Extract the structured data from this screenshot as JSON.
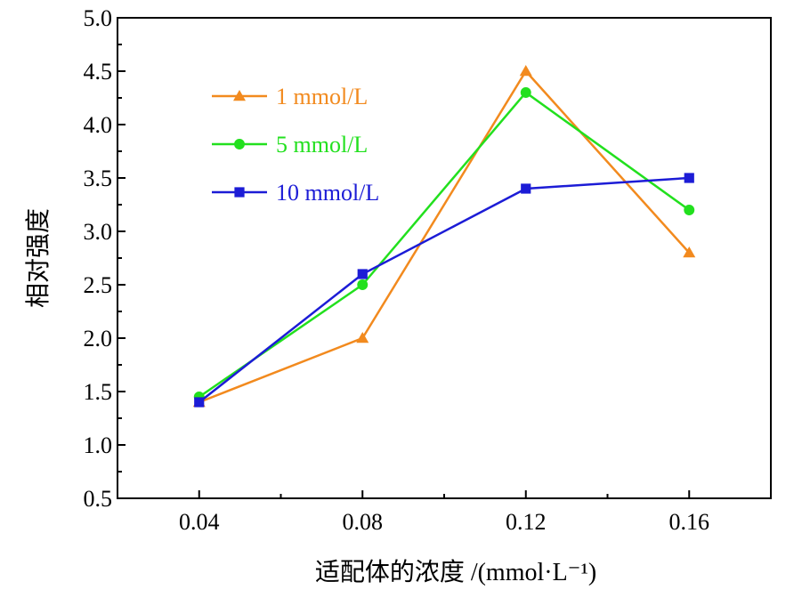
{
  "chart_data": {
    "type": "line",
    "title": "",
    "xlabel": "适配体的浓度 /(mmol·L⁻¹)",
    "ylabel": "相对强度",
    "x": [
      0.04,
      0.08,
      0.12,
      0.16
    ],
    "x_tick_labels": [
      "0.04",
      "0.08",
      "0.12",
      "0.16"
    ],
    "xlim": [
      0.02,
      0.18
    ],
    "ylim": [
      0.5,
      5.0
    ],
    "y_ticks": [
      0.5,
      1.0,
      1.5,
      2.0,
      2.5,
      3.0,
      3.5,
      4.0,
      4.5,
      5.0
    ],
    "y_tick_labels": [
      "0.5",
      "1.0",
      "1.5",
      "2.0",
      "2.5",
      "3.0",
      "3.5",
      "4.0",
      "4.5",
      "5.0"
    ],
    "grid": false,
    "legend_position": "top-left",
    "series": [
      {
        "name": "1 mmol/L",
        "color": "#F28A1E",
        "marker": "triangle",
        "values": [
          1.4,
          2.0,
          4.5,
          2.8
        ]
      },
      {
        "name": "5 mmol/L",
        "color": "#22E01E",
        "marker": "circle",
        "values": [
          1.45,
          2.5,
          4.3,
          3.2
        ]
      },
      {
        "name": "10 mmol/L",
        "color": "#1C1CD6",
        "marker": "square",
        "values": [
          1.4,
          2.6,
          3.4,
          3.5
        ]
      }
    ]
  }
}
